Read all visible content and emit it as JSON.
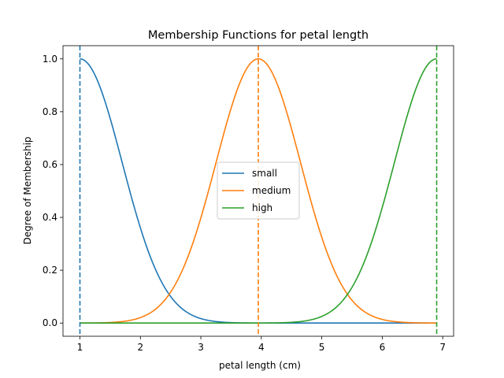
{
  "chart_data": {
    "type": "line",
    "title": "Membership Functions for petal length",
    "xlabel": "petal length (cm)",
    "ylabel": "Degree of Membership",
    "xlim": [
      0.72,
      7.18
    ],
    "ylim": [
      -0.05,
      1.05
    ],
    "xticks": [
      "1",
      "2",
      "3",
      "4",
      "5",
      "6",
      "7"
    ],
    "yticks": [
      "0.0",
      "0.2",
      "0.4",
      "0.6",
      "0.8",
      "1.0"
    ],
    "grid": false,
    "legend_position": "center",
    "series": [
      {
        "name": "small",
        "color": "#1f77b4",
        "function": "gaussian",
        "center": 1.0,
        "sigma": 0.7,
        "vline": 1.0
      },
      {
        "name": "medium",
        "color": "#ff7f0e",
        "function": "gaussian",
        "center": 3.95,
        "sigma": 0.7,
        "vline": 3.95
      },
      {
        "name": "high",
        "color": "#2ca02c",
        "function": "gaussian",
        "center": 6.9,
        "sigma": 0.7,
        "vline": 6.9
      }
    ],
    "x_range": [
      1.0,
      6.9
    ]
  }
}
